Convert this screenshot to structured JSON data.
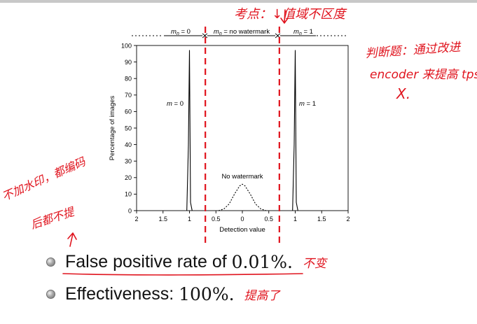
{
  "chart_data": {
    "type": "line",
    "xlabel": "Detection value",
    "ylabel": "Percentage of images",
    "xlim": [
      -2,
      2
    ],
    "ylim": [
      0,
      100
    ],
    "xticks": [
      -2,
      -1.5,
      -1,
      -0.5,
      0,
      0.5,
      1,
      1.5,
      2
    ],
    "xtick_labels": [
      "2",
      "1.5",
      "1",
      "0.5",
      "0",
      "0.5",
      "1",
      "1.5",
      "2"
    ],
    "yticks": [
      0,
      10,
      20,
      30,
      40,
      50,
      60,
      70,
      80,
      90,
      100
    ],
    "ytick_labels": [
      "0",
      "10",
      "20",
      "30",
      "40",
      "50",
      "60",
      "70",
      "80",
      "90",
      "100"
    ],
    "series": [
      {
        "name": "m = 0",
        "style": "solid",
        "x": [
          -1.05,
          -1.02,
          -1.0,
          -0.98,
          -0.95
        ],
        "y": [
          0,
          40,
          97,
          5,
          0
        ]
      },
      {
        "name": "No watermark",
        "style": "dotted",
        "x": [
          -0.45,
          -0.35,
          -0.25,
          -0.15,
          -0.05,
          0.0,
          0.05,
          0.15,
          0.25,
          0.35,
          0.45
        ],
        "y": [
          0,
          1,
          4,
          10,
          15,
          16,
          15,
          10,
          4,
          1,
          0
        ]
      },
      {
        "name": "m = 1",
        "style": "solid",
        "x": [
          0.95,
          0.98,
          1.0,
          1.02,
          1.05
        ],
        "y": [
          0,
          40,
          97,
          5,
          0
        ]
      }
    ],
    "thresholds": [
      -0.7,
      0.7
    ],
    "region_labels": {
      "left": "m_n = 0",
      "middle": "m_n = no watermark",
      "right": "m_n = 1"
    },
    "annotations": [
      "m = 0",
      "m = 1",
      "No watermark"
    ],
    "grid": false
  },
  "handwriting": {
    "top": "考点：↓值域不区度",
    "right_line1": "判断题：通过改进",
    "right_line2": "encoder 来提高 tps",
    "right_line3": "X.",
    "left_line1": "不加水印，都编码",
    "left_line2": "后都不提"
  },
  "bullets": [
    {
      "text": "False positive rate of ",
      "math": "0.01%.",
      "note": "不变"
    },
    {
      "text": "Effectiveness: ",
      "math": "100%.",
      "note": "提高了"
    }
  ],
  "colors": {
    "annotation_ink": "#e0141e",
    "threshold_line": "#e0141e",
    "plot_ink": "#000000"
  }
}
